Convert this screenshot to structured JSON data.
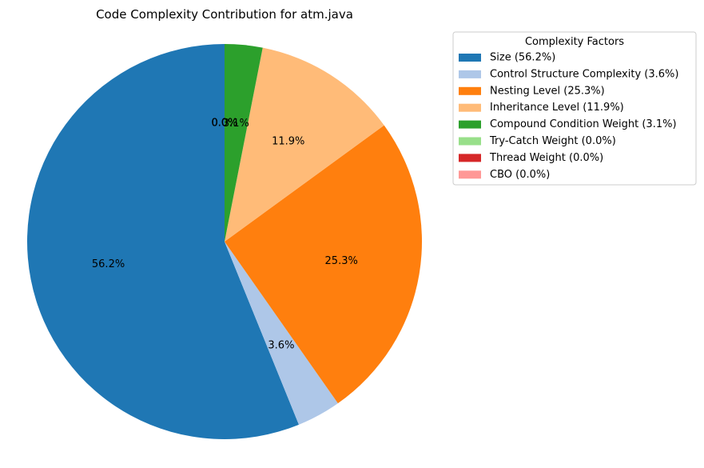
{
  "chart_data": {
    "type": "pie",
    "title": "Code Complexity Contribution for atm.java",
    "start_angle_deg": 90,
    "direction": "counterclockwise",
    "legend": {
      "title": "Complexity Factors",
      "placement": "outside-upper-right"
    },
    "slices": [
      {
        "label": "Size",
        "value": 56.2,
        "pct_label": "56.2%",
        "legend_label": "Size (56.2%)",
        "color": "#1f77b4"
      },
      {
        "label": "Control Structure Complexity",
        "value": 3.6,
        "pct_label": "3.6%",
        "legend_label": "Control Structure Complexity (3.6%)",
        "color": "#aec7e8"
      },
      {
        "label": "Nesting Level",
        "value": 25.3,
        "pct_label": "25.3%",
        "legend_label": "Nesting Level (25.3%)",
        "color": "#ff7f0e"
      },
      {
        "label": "Inheritance Level",
        "value": 11.9,
        "pct_label": "11.9%",
        "legend_label": "Inheritance Level (11.9%)",
        "color": "#ffbb78"
      },
      {
        "label": "Compound Condition Weight",
        "value": 3.1,
        "pct_label": "3.1%",
        "legend_label": "Compound Condition Weight (3.1%)",
        "color": "#2ca02c"
      },
      {
        "label": "Try-Catch Weight",
        "value": 0.0,
        "pct_label": "0.0%",
        "legend_label": "Try-Catch Weight (0.0%)",
        "color": "#98df8a"
      },
      {
        "label": "Thread Weight",
        "value": 0.0,
        "pct_label": "0.0%",
        "legend_label": "Thread Weight (0.0%)",
        "color": "#d62728"
      },
      {
        "label": "CBO",
        "value": 0.0,
        "pct_label": "0.0%",
        "legend_label": "CBO (0.0%)",
        "color": "#ff9896"
      }
    ]
  }
}
